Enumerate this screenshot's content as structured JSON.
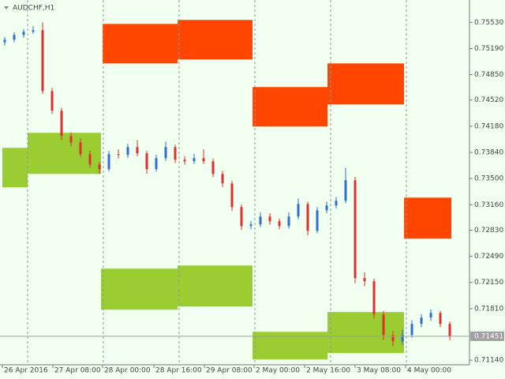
{
  "chart_data": {
    "type": "candlestick",
    "title": "AUDCHF,H1",
    "up_color": "#2f6fd0",
    "down_color": "#e03030",
    "xlim": [
      -0.5,
      49.08
    ],
    "ylim": [
      0.7108,
      0.7582
    ],
    "xticks": [
      {
        "value": -0.25,
        "label": "26 Apr 2016"
      },
      {
        "value": 5.08,
        "label": "27 Apr 08:00"
      },
      {
        "value": 10.33,
        "label": "28 Apr 00:00"
      },
      {
        "value": 15.75,
        "label": "28 Apr 16:00"
      },
      {
        "value": 21.08,
        "label": "29 Apr 08:00"
      },
      {
        "value": 26.33,
        "label": "2 May 00:00"
      },
      {
        "value": 31.67,
        "label": "2 May 16:00"
      },
      {
        "value": 37,
        "label": "3 May 08:00"
      },
      {
        "value": 42.33,
        "label": "4 May 00:00"
      }
    ],
    "yticks": [
      {
        "value": 0.7553,
        "label": "0.75530"
      },
      {
        "value": 0.7519,
        "label": "0.75190"
      },
      {
        "value": 0.7485,
        "label": "0.74850"
      },
      {
        "value": 0.7452,
        "label": "0.74520"
      },
      {
        "value": 0.7418,
        "label": "0.74180"
      },
      {
        "value": 0.7384,
        "label": "0.73840"
      },
      {
        "value": 0.735,
        "label": "0.73500"
      },
      {
        "value": 0.7316,
        "label": "0.73160"
      },
      {
        "value": 0.7283,
        "label": "0.72830"
      },
      {
        "value": 0.7249,
        "label": "0.72490"
      },
      {
        "value": 0.7215,
        "label": "0.72150"
      },
      {
        "value": 0.7181,
        "label": "0.71810"
      },
      {
        "value": 0.7114,
        "label": "0.71140"
      }
    ],
    "price_line": {
      "value": 0.71451,
      "label": "0.71451"
    },
    "zones": [
      {
        "color": "#ff4500",
        "start": 10.33,
        "end": 18.25,
        "top": 0.75509,
        "bottom": 0.74996
      },
      {
        "color": "#ff4500",
        "start": 18.25,
        "end": 26.17,
        "top": 0.75561,
        "bottom": 0.75048
      },
      {
        "color": "#ff4500",
        "start": 26.17,
        "end": 34.08,
        "top": 0.74689,
        "bottom": 0.74176
      },
      {
        "color": "#ff4500",
        "start": 34.08,
        "end": 42.17,
        "top": 0.74996,
        "bottom": 0.74463
      },
      {
        "color": "#ff4500",
        "start": 42.17,
        "end": 47.17,
        "top": 0.73252,
        "bottom": 0.72719
      },
      {
        "color": "#9acd32",
        "start": -0.25,
        "end": 2.42,
        "top": 0.73899,
        "bottom": 0.73386
      },
      {
        "color": "#9acd32",
        "start": 2.42,
        "end": 10.17,
        "top": 0.74094,
        "bottom": 0.7356
      },
      {
        "color": "#9acd32",
        "start": 10.17,
        "end": 18.25,
        "top": 0.72329,
        "bottom": 0.71796
      },
      {
        "color": "#9acd32",
        "start": 18.25,
        "end": 26.17,
        "top": 0.7237,
        "bottom": 0.71837
      },
      {
        "color": "#9acd32",
        "start": 26.17,
        "end": 34.08,
        "top": 0.71508,
        "bottom": 0.71149
      },
      {
        "color": "#9acd32",
        "start": 34.08,
        "end": 42.17,
        "top": 0.71765,
        "bottom": 0.71231
      }
    ],
    "open": [
      0.7527,
      0.75304,
      0.75366,
      0.75407,
      0.75427,
      0.74637,
      0.74381,
      0.74053,
      0.73971,
      0.73817,
      0.73683,
      0.73622,
      0.73817,
      0.73806,
      0.73909,
      0.73827,
      0.73622,
      0.73765,
      0.73909,
      0.73745,
      0.73724,
      0.73765,
      0.73724,
      0.7356,
      0.73437,
      0.73129,
      0.72883,
      0.72904,
      0.73006,
      0.72945,
      0.72883,
      0.73006,
      0.7317,
      0.72821,
      0.73088,
      0.7315,
      0.73211,
      0.73478,
      0.72206,
      0.72165,
      0.71734,
      0.71467,
      0.71385,
      0.71467,
      0.71611,
      0.71693,
      0.71754,
      0.71611
    ],
    "high": [
      0.7534,
      0.754,
      0.7544,
      0.7548,
      0.7553,
      0.7468,
      0.7442,
      0.741,
      0.7402,
      0.7386,
      0.7372,
      0.7386,
      0.7388,
      0.7395,
      0.74,
      0.7386,
      0.7381,
      0.7398,
      0.7394,
      0.7379,
      0.7382,
      0.7388,
      0.7376,
      0.736,
      0.7347,
      0.7316,
      0.7295,
      0.7306,
      0.7305,
      0.7298,
      0.7306,
      0.7324,
      0.732,
      0.7313,
      0.732,
      0.7326,
      0.7364,
      0.7352,
      0.7228,
      0.722,
      0.7178,
      0.7152,
      0.7154,
      0.7166,
      0.7174,
      0.718,
      0.7178,
      0.7164
    ],
    "low": [
      0.7523,
      0.7527,
      0.7533,
      0.7538,
      0.746,
      0.7434,
      0.74,
      0.7392,
      0.7378,
      0.7364,
      0.7356,
      0.7359,
      0.7376,
      0.7377,
      0.7379,
      0.7356,
      0.7359,
      0.7373,
      0.737,
      0.7368,
      0.7369,
      0.7369,
      0.7352,
      0.7339,
      0.7308,
      0.7283,
      0.7284,
      0.7287,
      0.729,
      0.7284,
      0.7285,
      0.7297,
      0.7276,
      0.7279,
      0.7305,
      0.7311,
      0.7318,
      0.7214,
      0.721,
      0.7168,
      0.714,
      0.7132,
      0.7134,
      0.7143,
      0.7157,
      0.7165,
      0.7157,
      0.714
    ],
    "close": [
      0.75304,
      0.75366,
      0.75407,
      0.75427,
      0.74637,
      0.74381,
      0.74053,
      0.73971,
      0.73817,
      0.73683,
      0.73622,
      0.73817,
      0.73806,
      0.73909,
      0.73827,
      0.73622,
      0.73765,
      0.73909,
      0.73745,
      0.73724,
      0.73765,
      0.73724,
      0.7356,
      0.73437,
      0.73129,
      0.72883,
      0.72904,
      0.73006,
      0.72945,
      0.72883,
      0.73006,
      0.7317,
      0.72821,
      0.73088,
      0.7315,
      0.73211,
      0.73478,
      0.72206,
      0.72165,
      0.71734,
      0.71467,
      0.71385,
      0.71467,
      0.71611,
      0.71693,
      0.71754,
      0.71611,
      0.71446
    ]
  }
}
